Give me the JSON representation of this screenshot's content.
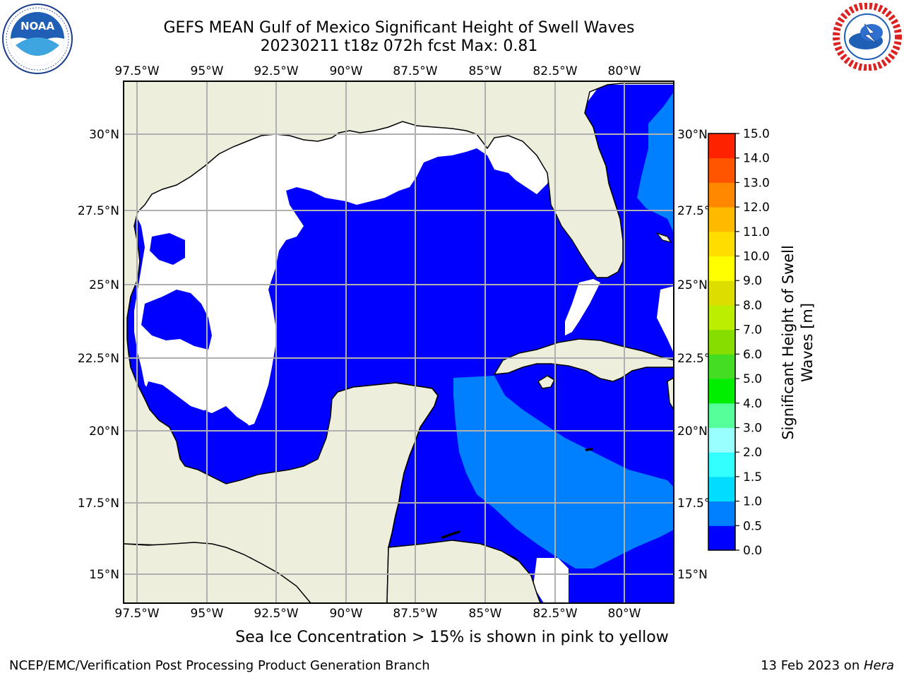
{
  "title": {
    "line1": "GEFS MEAN Gulf of Mexico Significant Height of Swell Waves",
    "line2": "20230211 t18z 072h fcst   Max: 0.81"
  },
  "map": {
    "lon_ticks": [
      "97.5°W",
      "95°W",
      "92.5°W",
      "90°W",
      "87.5°W",
      "85°W",
      "82.5°W",
      "80°W"
    ],
    "lat_ticks": [
      "30°N",
      "27.5°N",
      "25°N",
      "22.5°N",
      "20°N",
      "17.5°N",
      "15°N"
    ],
    "lat_ticks_right": [
      "30°N",
      "27.5°N",
      "25°N",
      "22.5°N",
      "20°N",
      "17.5°N",
      "15°N"
    ],
    "land_color": "#eeeedd",
    "no_data_color": "#ffffff",
    "grid_color": "#b0b0b0"
  },
  "colorbar": {
    "ticks": [
      "0.0",
      "0.5",
      "1.0",
      "1.5",
      "2.0",
      "3.0",
      "4.0",
      "5.0",
      "6.0",
      "7.0",
      "8.0",
      "9.0",
      "10.0",
      "11.0",
      "12.0",
      "13.0",
      "14.0",
      "15.0"
    ],
    "colors": [
      "#0000ff",
      "#0080ff",
      "#00ddff",
      "#33ffff",
      "#99ffff",
      "#55ff99",
      "#00ee00",
      "#44dd22",
      "#88dd00",
      "#bbee00",
      "#dddd00",
      "#ffff00",
      "#ffdd00",
      "#ffbb00",
      "#ff8800",
      "#ff5500",
      "#ff2200"
    ],
    "label_line1": "Significant Height of Swell",
    "label_line2": "Waves [m]"
  },
  "footer": {
    "note": "Sea Ice Concentration > 15% is shown in pink to yellow",
    "left": "NCEP/EMC/Verification Post Processing Product Generation Branch",
    "right_date": "13 Feb 2023 on ",
    "right_machine": "Hera"
  },
  "logos": {
    "noaa_text": "NOAA",
    "nws_text": "NATIONAL WEATHER SERVICE"
  }
}
